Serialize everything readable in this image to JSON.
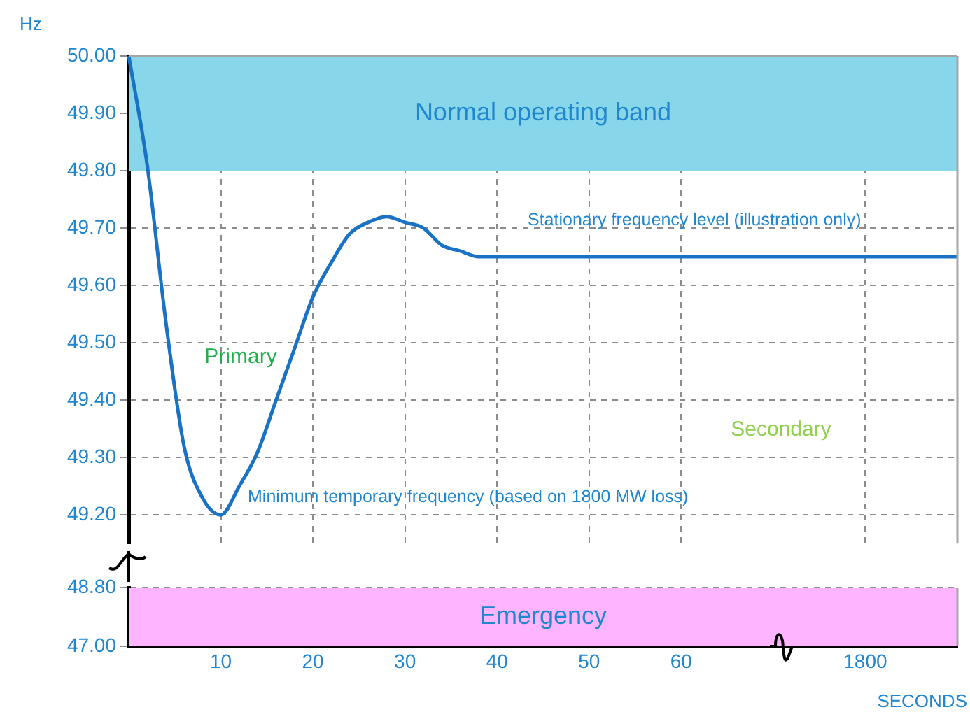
{
  "chart_data": [
    {
      "type": "line",
      "ylabel": "Hz",
      "categories": [
        null,
        null,
        null,
        null,
        null,
        "10",
        null,
        null,
        null,
        null,
        "20",
        null,
        null,
        null,
        null,
        "30",
        null,
        null,
        null,
        null,
        "40",
        null,
        null,
        null,
        null,
        "50",
        null,
        null,
        null,
        null,
        "60",
        null,
        null,
        null,
        null,
        null,
        null,
        null,
        null,
        null,
        "1800",
        null,
        null,
        null,
        null,
        null
      ],
      "series": [
        {
          "color": "#1a72c4",
          "values": [
            50.0,
            49.81,
            49.54,
            49.32,
            49.23,
            49.2,
            49.25,
            49.31,
            49.4,
            49.49,
            49.58,
            49.64,
            49.69,
            49.71,
            49.72,
            49.71,
            49.7,
            49.67,
            49.66,
            49.65,
            49.65,
            49.65,
            49.65,
            49.65,
            49.65,
            49.65,
            49.65,
            49.65,
            49.65,
            49.65,
            49.65,
            49.65,
            49.65,
            49.65,
            49.65,
            49.65,
            49.65,
            49.65,
            49.65,
            49.65,
            49.65,
            49.65,
            49.65,
            49.65,
            49.65,
            49.65
          ]
        }
      ],
      "ylim": [
        49.15,
        50.0
      ],
      "yticks": [
        {
          "value": 49.2,
          "label": "49.20"
        },
        {
          "value": 49.3,
          "label": "49.30"
        },
        {
          "value": 49.4,
          "label": "49.40"
        },
        {
          "value": 49.5,
          "label": "49.50"
        },
        {
          "value": 49.6,
          "label": "49.60"
        },
        {
          "value": 49.7,
          "label": "49.70"
        },
        {
          "value": 49.8,
          "label": "49.80"
        },
        {
          "value": 49.9,
          "label": "49.90"
        },
        {
          "value": 50.0,
          "label": "50.00"
        }
      ],
      "bands": [
        {
          "axis": "y",
          "from": 49.8,
          "to": 50.0,
          "label": "Normal operating band",
          "color": "#87d6ea"
        }
      ],
      "annotations": [
        "Primary",
        "Secondary",
        "Minimum temporary frequency (based on 1800 MW loss)",
        "Stationary frequency level (illustration only)"
      ],
      "tick_labels": "y",
      "grid": true,
      "legend": false,
      "marker": "none"
    },
    {
      "type": "line",
      "xlabel": "SECONDS",
      "categories": [
        null,
        null,
        null,
        null,
        null,
        "10",
        null,
        null,
        null,
        null,
        "20",
        null,
        null,
        null,
        null,
        "30",
        null,
        null,
        null,
        null,
        "40",
        null,
        null,
        null,
        null,
        "50",
        null,
        null,
        null,
        null,
        "60",
        null,
        null,
        null,
        null,
        null,
        null,
        null,
        null,
        null,
        "1800",
        null,
        null,
        null,
        null,
        null
      ],
      "ylim": [
        47.0,
        48.8
      ],
      "yticks": [
        {
          "value": 47.0,
          "label": "47.00"
        },
        {
          "value": 48.8,
          "label": "48.80"
        }
      ],
      "bands": [
        {
          "axis": "y",
          "from": 47.0,
          "to": 48.8,
          "label": "Emergency",
          "color": "#ffb4ff"
        }
      ],
      "grid": true,
      "legend": false
    }
  ]
}
